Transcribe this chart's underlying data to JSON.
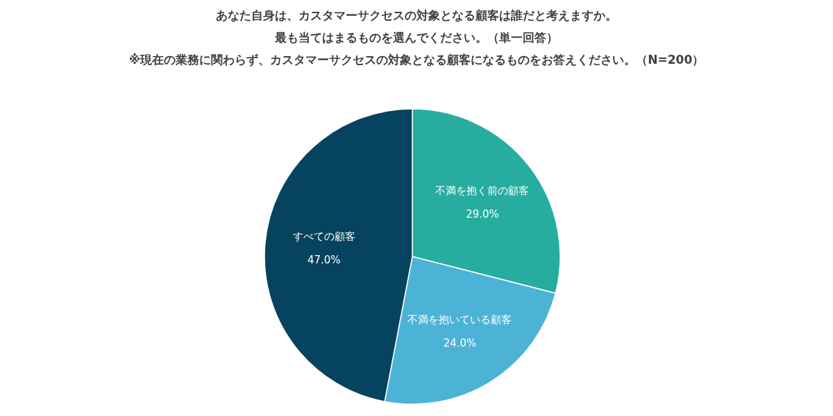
{
  "chart_data": {
    "type": "pie",
    "title": "あなた自身は、カスタマーサクセスの対象となる顧客は誰だと考えますか。",
    "subtitle": "最も当てはまるものを選んでください。（単一回答）",
    "annotations": [
      "※現在の業務に関わらず、カスタマーサクセスの対象となる顧客になるものをお答えください。（N=200）"
    ],
    "categories": [
      "不満を抱く前の顧客",
      "不満を抱いている顧客",
      "すべての顧客"
    ],
    "values": [
      29,
      24,
      47
    ],
    "value_labels": [
      "29.0%",
      "24.0%",
      "47.0%"
    ],
    "colors": [
      "#26ada0",
      "#4db3d6",
      "#06435e"
    ],
    "legend": false
  }
}
